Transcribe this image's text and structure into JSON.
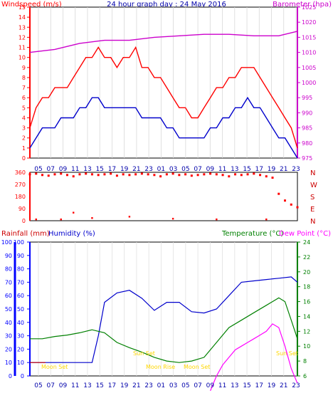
{
  "header": {
    "windspeed_label": "Windspeed (m/s)",
    "title": "24 hour graph day : 24 May 2016",
    "barometer_label": "Barometer (hpa)"
  },
  "colors": {
    "wind": "#ff0000",
    "wind_low": "#0000cc",
    "barometer": "#cc00cc",
    "direction": "#ff0000",
    "rainfall": "#cc0000",
    "humidity": "#0000cc",
    "temperature": "#008000",
    "dewpoint": "#ff00ff",
    "axis_blue": "#0000ff",
    "astro": "#ffd700"
  },
  "hours": [
    "05",
    "07",
    "09",
    "11",
    "13",
    "15",
    "17",
    "19",
    "21",
    "23",
    "01",
    "03",
    "05",
    "07",
    "09",
    "11",
    "13",
    "15",
    "17",
    "19",
    "21",
    "23"
  ],
  "panel2_labels": {
    "temperature": "Temperature (°C)",
    "dewpoint": "Dew Point (°C)",
    "rainfall": "Rainfall (mm)",
    "humidity": "Humidity (%)"
  },
  "astro_events": [
    {
      "label": "Moon Set",
      "hour": "07"
    },
    {
      "label": "Sun Set",
      "hour": "19"
    },
    {
      "label": "Moon Rise",
      "hour": "23"
    },
    {
      "label": "Moon Set",
      "hour": "07"
    },
    {
      "label": "Sun Set",
      "hour": "23"
    }
  ],
  "astro_positions_note": "",
  "chart_data": [
    {
      "type": "line",
      "title": "24 hour graph day : 24 May 2016",
      "xlabel": "",
      "ylabel": "Windspeed (m/s)",
      "y2label": "Barometer (hpa)",
      "ylim": [
        0,
        15
      ],
      "y2lim": [
        975,
        1025
      ],
      "yticks": [
        0,
        1,
        2,
        3,
        4,
        5,
        6,
        7,
        8,
        9,
        10,
        11,
        12,
        13,
        14,
        15
      ],
      "y2ticks": [
        975,
        980,
        985,
        990,
        995,
        1000,
        1005,
        1010,
        1015,
        1020,
        1025
      ],
      "x_tick_labels": [
        "05",
        "07",
        "09",
        "11",
        "13",
        "15",
        "17",
        "19",
        "21",
        "23",
        "01",
        "03",
        "05",
        "07",
        "09",
        "11",
        "13",
        "15",
        "17",
        "19",
        "21",
        "23"
      ],
      "series": [
        {
          "name": "Windspeed (m/s)",
          "axis": "left",
          "x": [
            0,
            1,
            2,
            3,
            4,
            5,
            6,
            7,
            8,
            9,
            10,
            11,
            12,
            13,
            14,
            15,
            16,
            17,
            18,
            19,
            20,
            21,
            22,
            23,
            24,
            25,
            26,
            27,
            28,
            29,
            30,
            31,
            32,
            33,
            34,
            35,
            36,
            37,
            38,
            39,
            40,
            41,
            42,
            43
          ],
          "values": [
            3,
            5,
            6,
            6,
            7,
            7,
            7,
            8,
            9,
            10,
            10,
            11,
            10,
            10,
            9,
            10,
            10,
            11,
            9,
            9,
            8,
            8,
            7,
            6,
            5,
            5,
            4,
            4,
            5,
            6,
            7,
            7,
            8,
            8,
            9,
            9,
            9,
            8,
            7,
            6,
            5,
            4,
            3,
            1
          ]
        },
        {
          "name": "Gust low",
          "axis": "left",
          "x": [
            0,
            1,
            2,
            3,
            4,
            5,
            6,
            7,
            8,
            9,
            10,
            11,
            12,
            13,
            14,
            15,
            16,
            17,
            18,
            19,
            20,
            21,
            22,
            23,
            24,
            25,
            26,
            27,
            28,
            29,
            30,
            31,
            32,
            33,
            34,
            35,
            36,
            37,
            38,
            39,
            40,
            41,
            42,
            43
          ],
          "values": [
            1,
            2,
            3,
            3,
            3,
            4,
            4,
            4,
            5,
            5,
            6,
            6,
            5,
            5,
            5,
            5,
            5,
            5,
            4,
            4,
            4,
            4,
            3,
            3,
            2,
            2,
            2,
            2,
            2,
            3,
            3,
            4,
            4,
            5,
            5,
            6,
            5,
            5,
            4,
            3,
            2,
            2,
            1,
            0
          ]
        },
        {
          "name": "Barometer (hpa)",
          "axis": "right",
          "x": [
            0,
            4,
            8,
            12,
            16,
            20,
            24,
            28,
            32,
            36,
            40,
            43
          ],
          "values": [
            1010,
            1011,
            1013,
            1014,
            1014,
            1015,
            1015.5,
            1016,
            1016,
            1015.5,
            1015.5,
            1017
          ]
        }
      ]
    },
    {
      "type": "scatter",
      "title": "",
      "ylabel": "Wind direction",
      "ylim": [
        0,
        360
      ],
      "yticks": [
        0,
        90,
        180,
        270,
        360
      ],
      "right_labels": [
        "N",
        "W",
        "S",
        "E",
        "N"
      ],
      "x": [
        0,
        1,
        2,
        3,
        4,
        5,
        6,
        7,
        8,
        9,
        10,
        11,
        12,
        13,
        14,
        15,
        16,
        17,
        18,
        19,
        20,
        21,
        22,
        23,
        24,
        25,
        26,
        27,
        28,
        29,
        30,
        31,
        32,
        33,
        34,
        35,
        36,
        37,
        38,
        39,
        40,
        41,
        42,
        43
      ],
      "values": [
        345,
        350,
        340,
        335,
        345,
        350,
        340,
        330,
        345,
        350,
        345,
        340,
        345,
        350,
        335,
        345,
        340,
        345,
        350,
        345,
        340,
        330,
        345,
        350,
        340,
        345,
        335,
        340,
        345,
        350,
        345,
        340,
        330,
        345,
        340,
        345,
        350,
        340,
        330,
        320,
        200,
        150,
        120,
        100
      ],
      "outliers": [
        {
          "x": 1,
          "y": 10
        },
        {
          "x": 5,
          "y": 10
        },
        {
          "x": 7,
          "y": 60
        },
        {
          "x": 10,
          "y": 20
        },
        {
          "x": 16,
          "y": 30
        },
        {
          "x": 23,
          "y": 15
        },
        {
          "x": 30,
          "y": 10
        },
        {
          "x": 38,
          "y": 10
        }
      ]
    },
    {
      "type": "line",
      "title": "",
      "ylabel": "Rainfall (mm)",
      "ylim": [
        0,
        100
      ],
      "yticks": [
        0,
        10,
        20,
        30,
        40,
        50,
        60,
        70,
        80,
        90,
        100
      ],
      "y2lim": [
        6,
        24
      ],
      "y2ticks": [
        6,
        8,
        10,
        12,
        14,
        16,
        18,
        20,
        22,
        24
      ],
      "x_tick_labels": [
        "05",
        "07",
        "09",
        "11",
        "13",
        "15",
        "17",
        "19",
        "21",
        "23",
        "01",
        "03",
        "05",
        "07",
        "09",
        "11",
        "13",
        "15",
        "17",
        "19",
        "21",
        "23"
      ],
      "series": [
        {
          "name": "Humidity (%)",
          "axis": "left",
          "x": [
            0,
            2,
            4,
            6,
            8,
            9,
            10,
            11,
            12,
            14,
            16,
            18,
            20,
            22,
            24,
            26,
            28,
            30,
            32,
            34,
            36,
            38,
            40,
            42,
            43
          ],
          "values": [
            10,
            10,
            10,
            10,
            10,
            10,
            10,
            30,
            55,
            62,
            64,
            58,
            49,
            55,
            55,
            48,
            47,
            50,
            60,
            70,
            71,
            72,
            73,
            74,
            70
          ]
        },
        {
          "name": "Rainfall (mm)",
          "axis": "left",
          "x": [
            0,
            2.5
          ],
          "values": [
            10,
            10
          ]
        },
        {
          "name": "Temperature (°C)",
          "axis": "right",
          "x": [
            0,
            2,
            4,
            6,
            8,
            10,
            12,
            14,
            16,
            18,
            20,
            22,
            24,
            26,
            28,
            30,
            32,
            34,
            36,
            38,
            40,
            41,
            42,
            43
          ],
          "values": [
            11,
            11,
            11.3,
            11.5,
            11.8,
            12.2,
            11.8,
            10.5,
            9.8,
            9.2,
            8.5,
            8.0,
            7.8,
            8.0,
            8.5,
            10.5,
            12.5,
            13.5,
            14.5,
            15.5,
            16.5,
            16.0,
            13.5,
            11.0
          ]
        },
        {
          "name": "Dew Point (°C)",
          "axis": "right",
          "x": [
            29,
            30,
            31,
            32,
            33,
            34,
            35,
            36,
            37,
            38,
            39,
            40,
            41,
            42,
            43
          ],
          "values": [
            4,
            6,
            7.5,
            8.5,
            9.5,
            10,
            10.5,
            11,
            11.5,
            12,
            13,
            12.5,
            10,
            7,
            5
          ]
        }
      ]
    }
  ]
}
